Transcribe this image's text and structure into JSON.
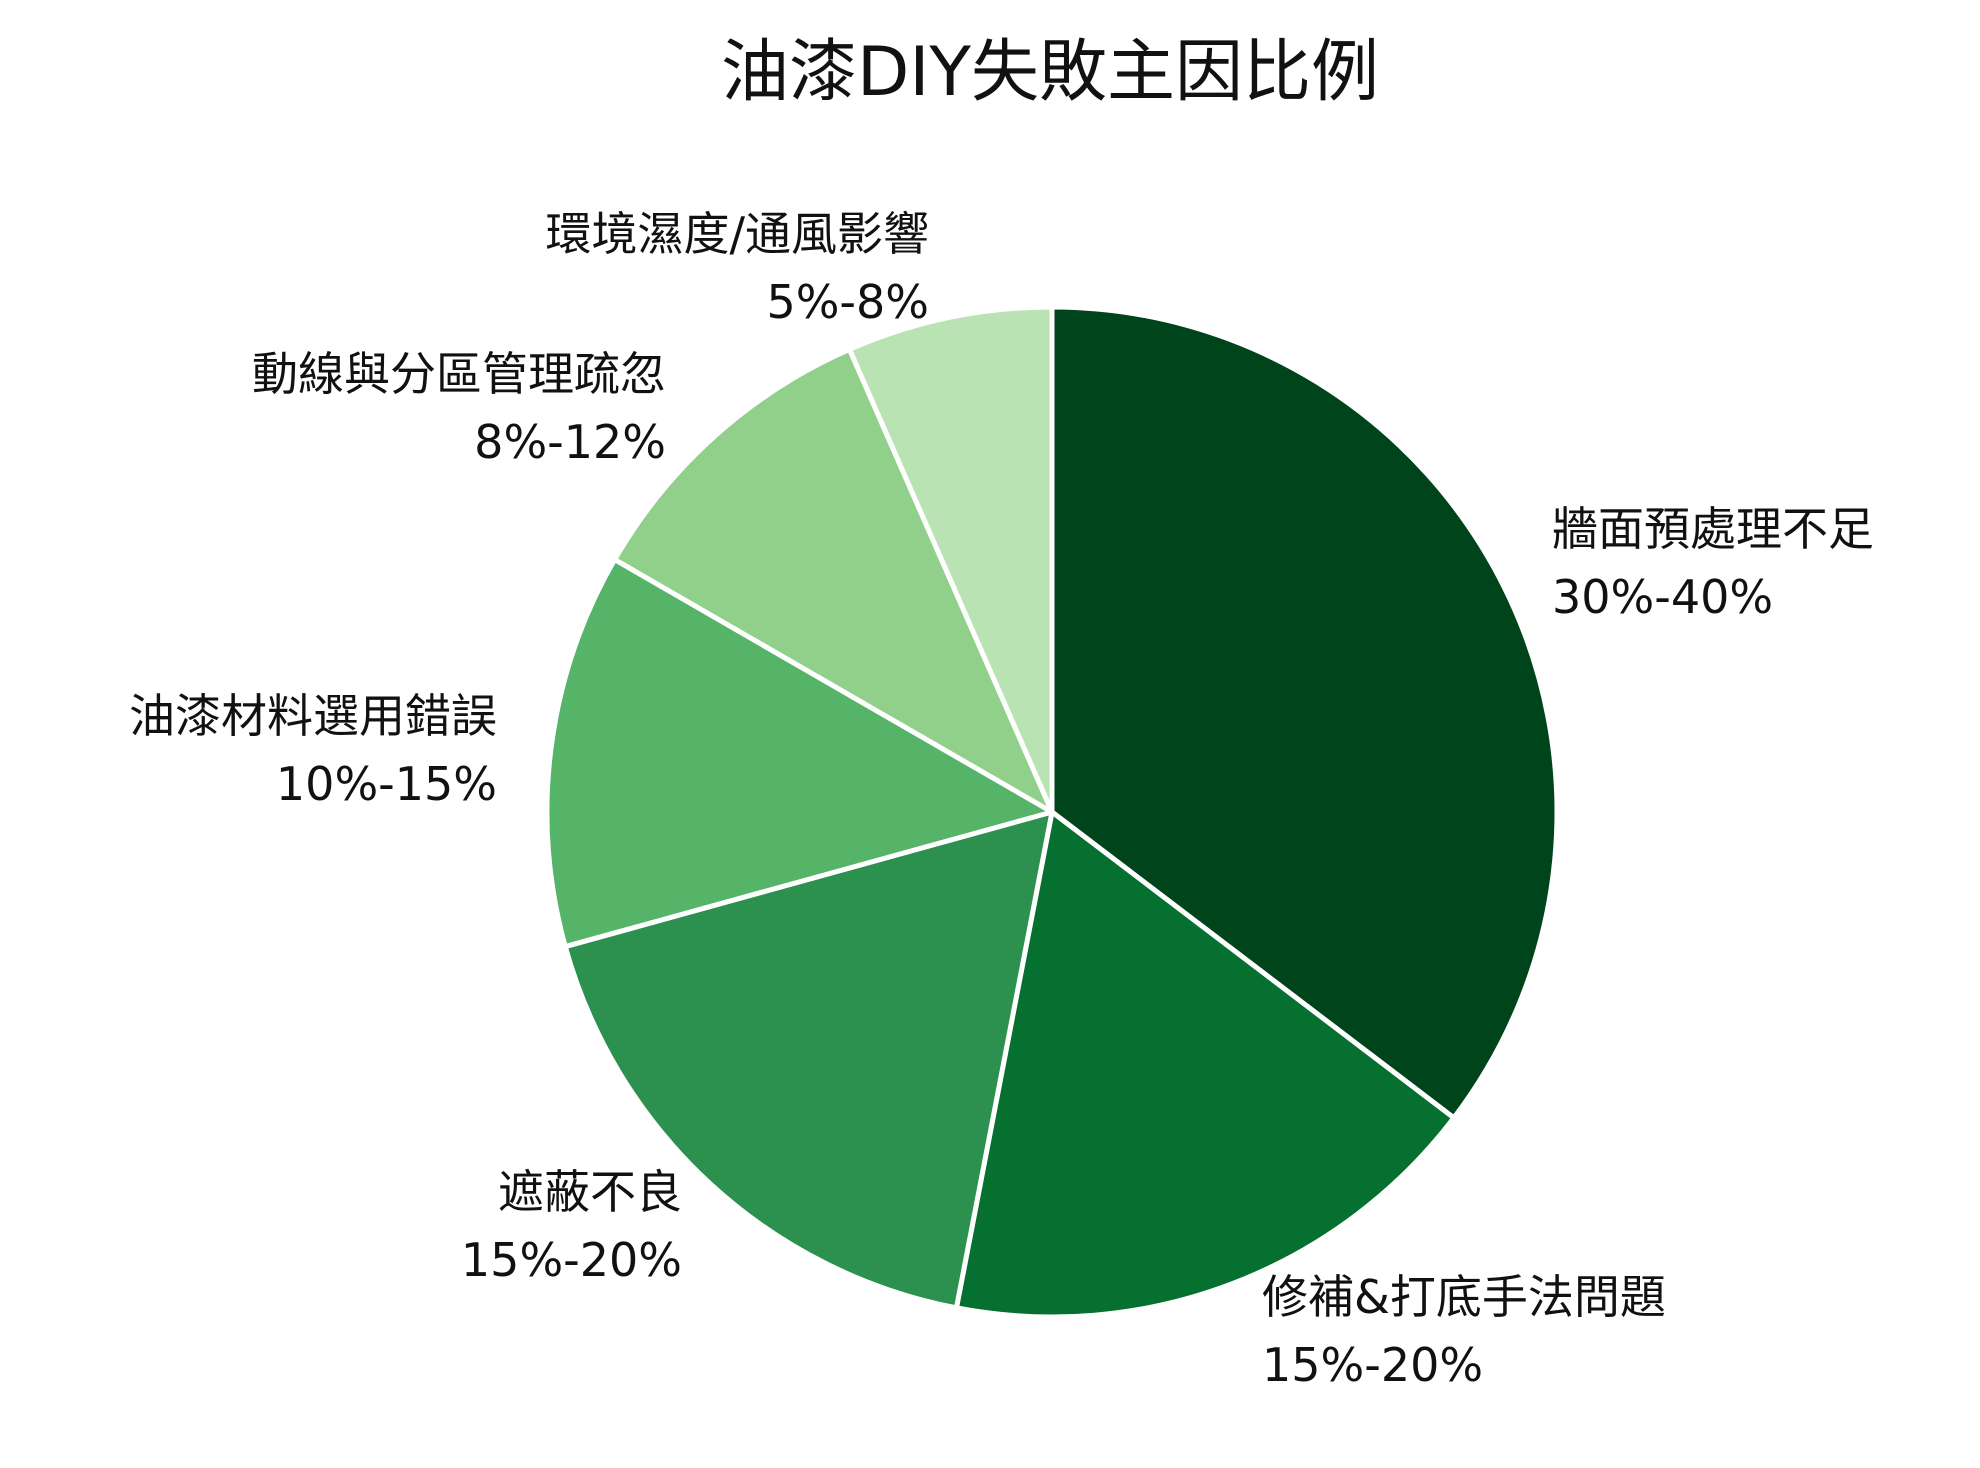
{
  "chart_data": {
    "type": "pie",
    "title": "油漆DIY失敗主因比例",
    "slices": [
      {
        "label": "牆面預處理不足",
        "range": "30%-40%",
        "value": 35,
        "color": "#00441b"
      },
      {
        "label": "修補&打底手法問題",
        "range": "15%-20%",
        "value": 17.5,
        "color": "#05702f"
      },
      {
        "label": "遮蔽不良",
        "range": "15%-20%",
        "value": 17.5,
        "color": "#2c914e"
      },
      {
        "label": "油漆材料選用錯誤",
        "range": "10%-15%",
        "value": 12.5,
        "color": "#56b468"
      },
      {
        "label": "動線與分區管理疏忽",
        "range": "8%-12%",
        "value": 10,
        "color": "#90d08a"
      },
      {
        "label": "環境濕度/通風影響",
        "range": "5%-8%",
        "value": 6.5,
        "color": "#b9e3b3"
      }
    ]
  }
}
